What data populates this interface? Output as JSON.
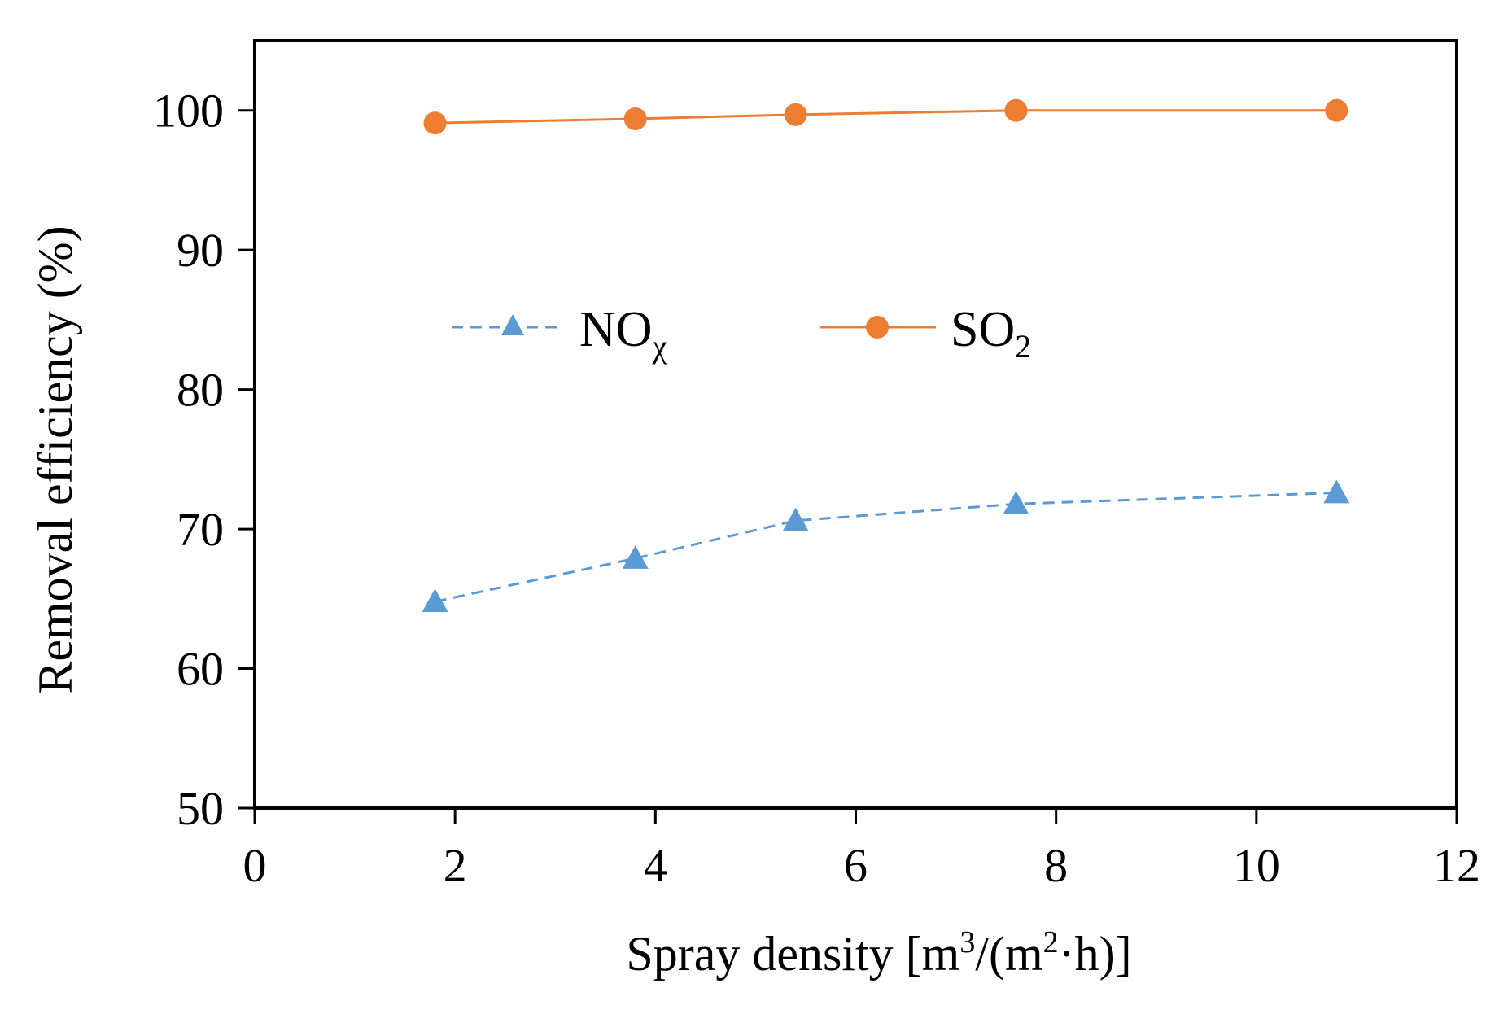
{
  "chart_data": {
    "type": "line",
    "title": "",
    "xlabel_parts": {
      "text": "Spray density [m",
      "sup1": "3",
      "mid": "/(m",
      "sup2": "2",
      "tail": "·h)]"
    },
    "ylabel": "Removal efficiency (%)",
    "xlim": [
      0,
      12
    ],
    "ylim": [
      50,
      105
    ],
    "xticks": [
      0,
      2,
      4,
      6,
      8,
      10,
      12
    ],
    "yticks": [
      50,
      60,
      70,
      80,
      90,
      100
    ],
    "legend_position": "upper-center",
    "series": [
      {
        "name": "NOχ",
        "legend_main": "NO",
        "legend_sub": "χ",
        "color": "#5B9BD5",
        "line_style": "dashed",
        "marker": "triangle",
        "x": [
          1.8,
          3.8,
          5.4,
          7.6,
          10.8
        ],
        "y": [
          64.8,
          67.9,
          70.6,
          71.8,
          72.6
        ]
      },
      {
        "name": "SO2",
        "legend_main": "SO",
        "legend_sub": "2",
        "color": "#ED7D31",
        "line_style": "solid",
        "marker": "circle",
        "x": [
          1.8,
          3.8,
          5.4,
          7.6,
          10.8
        ],
        "y": [
          99.1,
          99.4,
          99.7,
          100.0,
          100.0
        ]
      }
    ]
  }
}
